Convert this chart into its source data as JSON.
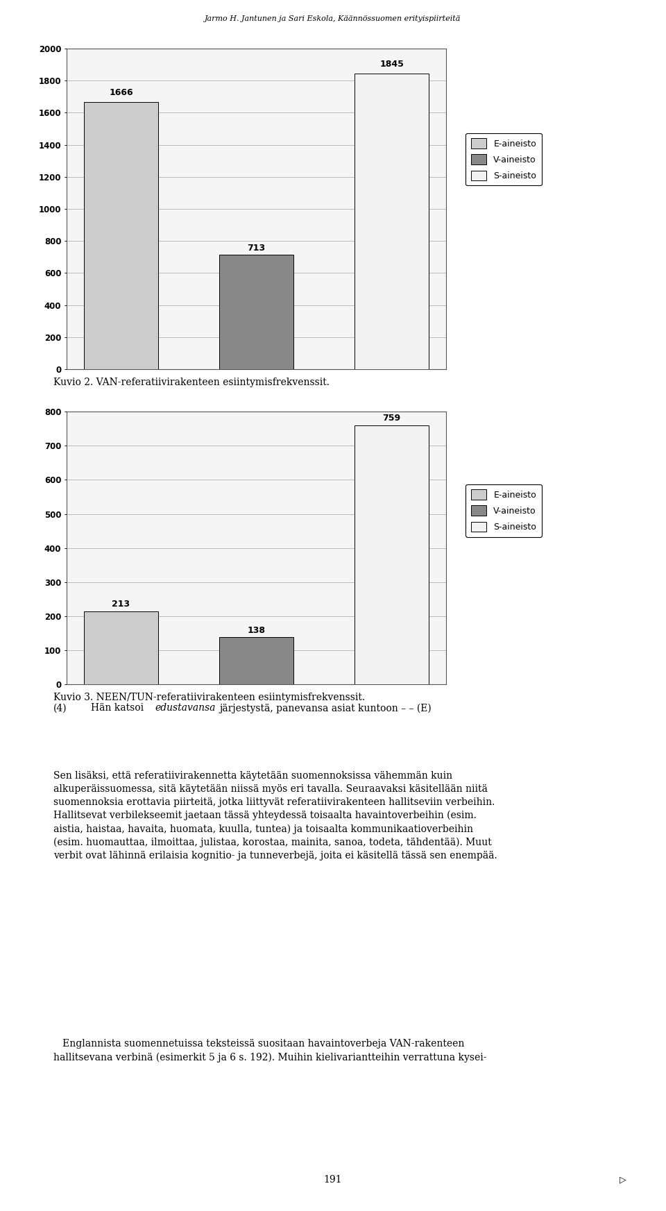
{
  "header": "Jarmo H. Jantunen ja Sari Eskola, Käännössuomen erityispiirteitä",
  "chart1": {
    "categories": [
      "E-aineisto",
      "V-aineisto",
      "S-aineisto"
    ],
    "values": [
      1666,
      713,
      1845
    ],
    "colors": [
      "#cccccc",
      "#888888",
      "#f2f2f2"
    ],
    "ylim": [
      0,
      2000
    ],
    "yticks": [
      0,
      200,
      400,
      600,
      800,
      1000,
      1200,
      1400,
      1600,
      1800,
      2000
    ],
    "caption": "Kuvio 2. VAN-referatiivirakenteen esiintymisfrekvenssit."
  },
  "chart2": {
    "categories": [
      "E-aineisto",
      "V-aineisto",
      "S-aineisto"
    ],
    "values": [
      213,
      138,
      759
    ],
    "colors": [
      "#cccccc",
      "#888888",
      "#f2f2f2"
    ],
    "ylim": [
      0,
      800
    ],
    "yticks": [
      0,
      100,
      200,
      300,
      400,
      500,
      600,
      700,
      800
    ],
    "caption": "Kuvio 3. NEEN/TUN-referatiivirakenteen esiintymisfrekvenssit."
  },
  "legend_labels": [
    "E-aineisto",
    "V-aineisto",
    "S-aineisto"
  ],
  "legend_colors": [
    "#cccccc",
    "#888888",
    "#f2f2f2"
  ],
  "line4": "(4)      Hän katsoi ",
  "line4_italic": "edustavansa",
  "line4_rest": " järjestystä, panevansa asiat kuntoon – – (E)",
  "para1": "Sen lisäksi, että referatiivirakennetta käytetään suomennoksissa vähemmän kuin alkuperäissuomessa, sitä käytetään niissä myös eri tavalla. Seuraavaksi käsitellään niitä suomennoksia erottavia piirteitä, jotka liittyvät referatiivirakenteen hallitseviin verbeihin. Hallitsevat verbilekseemit jaetaan tässä yhteydessä toisaalta havaintoverbeihin (esim.",
  "para1_italic": "aistia, haistaa, havaita, huomata, kuulla, tuntea",
  "para1_cont": ") ja toisaalta kommunikaatioverbeihin (esim.",
  "para1_italic2": "huomauttaa, ilmoittaa, julistaa, korostaa, mainita, sanoa, todeta, tähdentää",
  "para1_end": "). Muut verbit ovat lähinnä erilaisia kognitio- ja tunneverbejä, joita ei käsitellä tässä sen enempää.",
  "para2": "   Englannista suomennetuissa teksteissä suositaan havaintoverbeja VAN-rakenteen hallitsevana verbeinä (esimerkit 5 ja 6 s. 192). Muihin kielivariantteihin verrattuna kysei-",
  "page_number": "191",
  "arrow": "▷",
  "background_color": "#ffffff",
  "grid_color": "#b0b0b0",
  "chart_bg": "#f5f5f5"
}
